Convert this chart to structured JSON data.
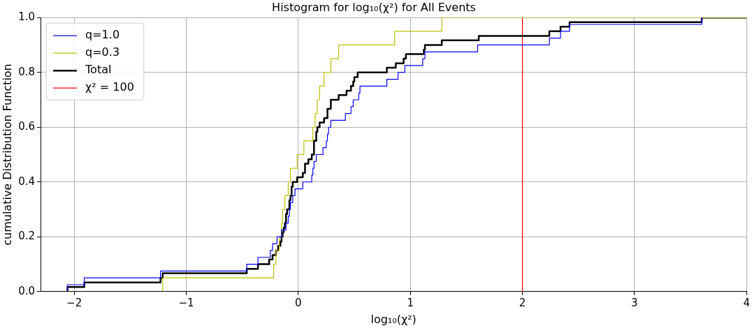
{
  "chart_data": {
    "type": "step",
    "title": "Histogram for log₁₀(χ²) for All Events",
    "xlabel": "log₁₀(χ²)",
    "ylabel": "cumulative Distribution Function",
    "xlim": [
      -2.3,
      4
    ],
    "xticks": [
      {
        "value": -2,
        "label": "−2"
      },
      {
        "value": -1,
        "label": "−1"
      },
      0,
      1,
      2,
      3,
      4
    ],
    "ylim": [
      0,
      1
    ],
    "yticks": [
      {
        "value": 0,
        "label": "0.0"
      },
      {
        "value": 0.2,
        "label": "0.2"
      },
      {
        "value": 0.4,
        "label": "0.4"
      },
      {
        "value": 0.6,
        "label": "0.6"
      },
      {
        "value": 0.8,
        "label": "0.8"
      },
      {
        "value": 1,
        "label": "1.0"
      }
    ],
    "grid": true,
    "legend": "top left",
    "marker": "none",
    "series": [
      {
        "name": "q=1.0",
        "color": "#0000ff",
        "x": [
          -2.06,
          -2.06,
          -1.91,
          -1.23,
          -0.46,
          -0.36,
          -0.25,
          -0.23,
          -0.19,
          -0.15,
          -0.11,
          -0.09,
          -0.08,
          -0.07,
          -0.05,
          -0.03,
          0.04,
          0.12,
          0.13,
          0.14,
          0.16,
          0.22,
          0.25,
          0.26,
          0.27,
          0.29,
          0.42,
          0.47,
          0.49,
          0.54,
          0.55,
          0.79,
          0.89,
          0.95,
          1.11,
          1.13,
          1.6,
          2.24,
          2.34,
          2.42,
          3.6
        ],
        "values": [
          0,
          0.025,
          0.05,
          0.075,
          0.1,
          0.125,
          0.15,
          0.175,
          0.2,
          0.225,
          0.25,
          0.275,
          0.3,
          0.325,
          0.35,
          0.375,
          0.4,
          0.425,
          0.45,
          0.475,
          0.5,
          0.525,
          0.55,
          0.575,
          0.6,
          0.625,
          0.65,
          0.675,
          0.7,
          0.725,
          0.75,
          0.775,
          0.8,
          0.825,
          0.85,
          0.875,
          0.9,
          0.925,
          0.95,
          0.975,
          1
        ]
      },
      {
        "name": "q=0.3",
        "color": "#bfbf00",
        "x": [
          -1.21,
          -1.21,
          -0.22,
          -0.2,
          -0.17,
          -0.15,
          -0.14,
          -0.12,
          -0.09,
          -0.07,
          -0.01,
          0.05,
          0.13,
          0.15,
          0.17,
          0.19,
          0.23,
          0.29,
          0.36,
          0.86,
          1.28,
          4
        ],
        "values": [
          0,
          0.05,
          0.1,
          0.15,
          0.2,
          0.25,
          0.3,
          0.35,
          0.4,
          0.45,
          0.5,
          0.55,
          0.6,
          0.65,
          0.7,
          0.75,
          0.8,
          0.85,
          0.9,
          0.95,
          1,
          1
        ]
      },
      {
        "name": "Total",
        "color": "#000000",
        "x": [
          -2.06,
          -2.06,
          -1.91,
          -1.23,
          -1.21,
          -0.46,
          -0.36,
          -0.26,
          -0.23,
          -0.2,
          -0.18,
          -0.16,
          -0.15,
          -0.14,
          -0.13,
          -0.12,
          -0.11,
          -0.1,
          -0.08,
          -0.07,
          -0.06,
          -0.05,
          -0.01,
          0.04,
          0.06,
          0.09,
          0.12,
          0.14,
          0.16,
          0.17,
          0.19,
          0.23,
          0.26,
          0.29,
          0.36,
          0.43,
          0.47,
          0.49,
          0.5,
          0.53,
          0.79,
          0.87,
          0.94,
          0.96,
          1.12,
          1.13,
          1.28,
          1.61,
          2.24,
          2.34,
          2.42,
          3.6,
          4
        ],
        "values": [
          0,
          0.017,
          0.033,
          0.05,
          0.067,
          0.083,
          0.1,
          0.117,
          0.133,
          0.15,
          0.167,
          0.183,
          0.2,
          0.217,
          0.233,
          0.25,
          0.283,
          0.3,
          0.333,
          0.35,
          0.383,
          0.4,
          0.417,
          0.433,
          0.467,
          0.483,
          0.5,
          0.55,
          0.583,
          0.6,
          0.617,
          0.633,
          0.667,
          0.7,
          0.717,
          0.733,
          0.75,
          0.767,
          0.783,
          0.8,
          0.817,
          0.833,
          0.85,
          0.867,
          0.883,
          0.9,
          0.917,
          0.933,
          0.95,
          0.967,
          0.983,
          1,
          1
        ]
      },
      {
        "type": "line",
        "name": "χ² = 100",
        "color": "#ff0000",
        "x": [
          2,
          2
        ],
        "values": [
          0,
          1
        ]
      }
    ]
  }
}
